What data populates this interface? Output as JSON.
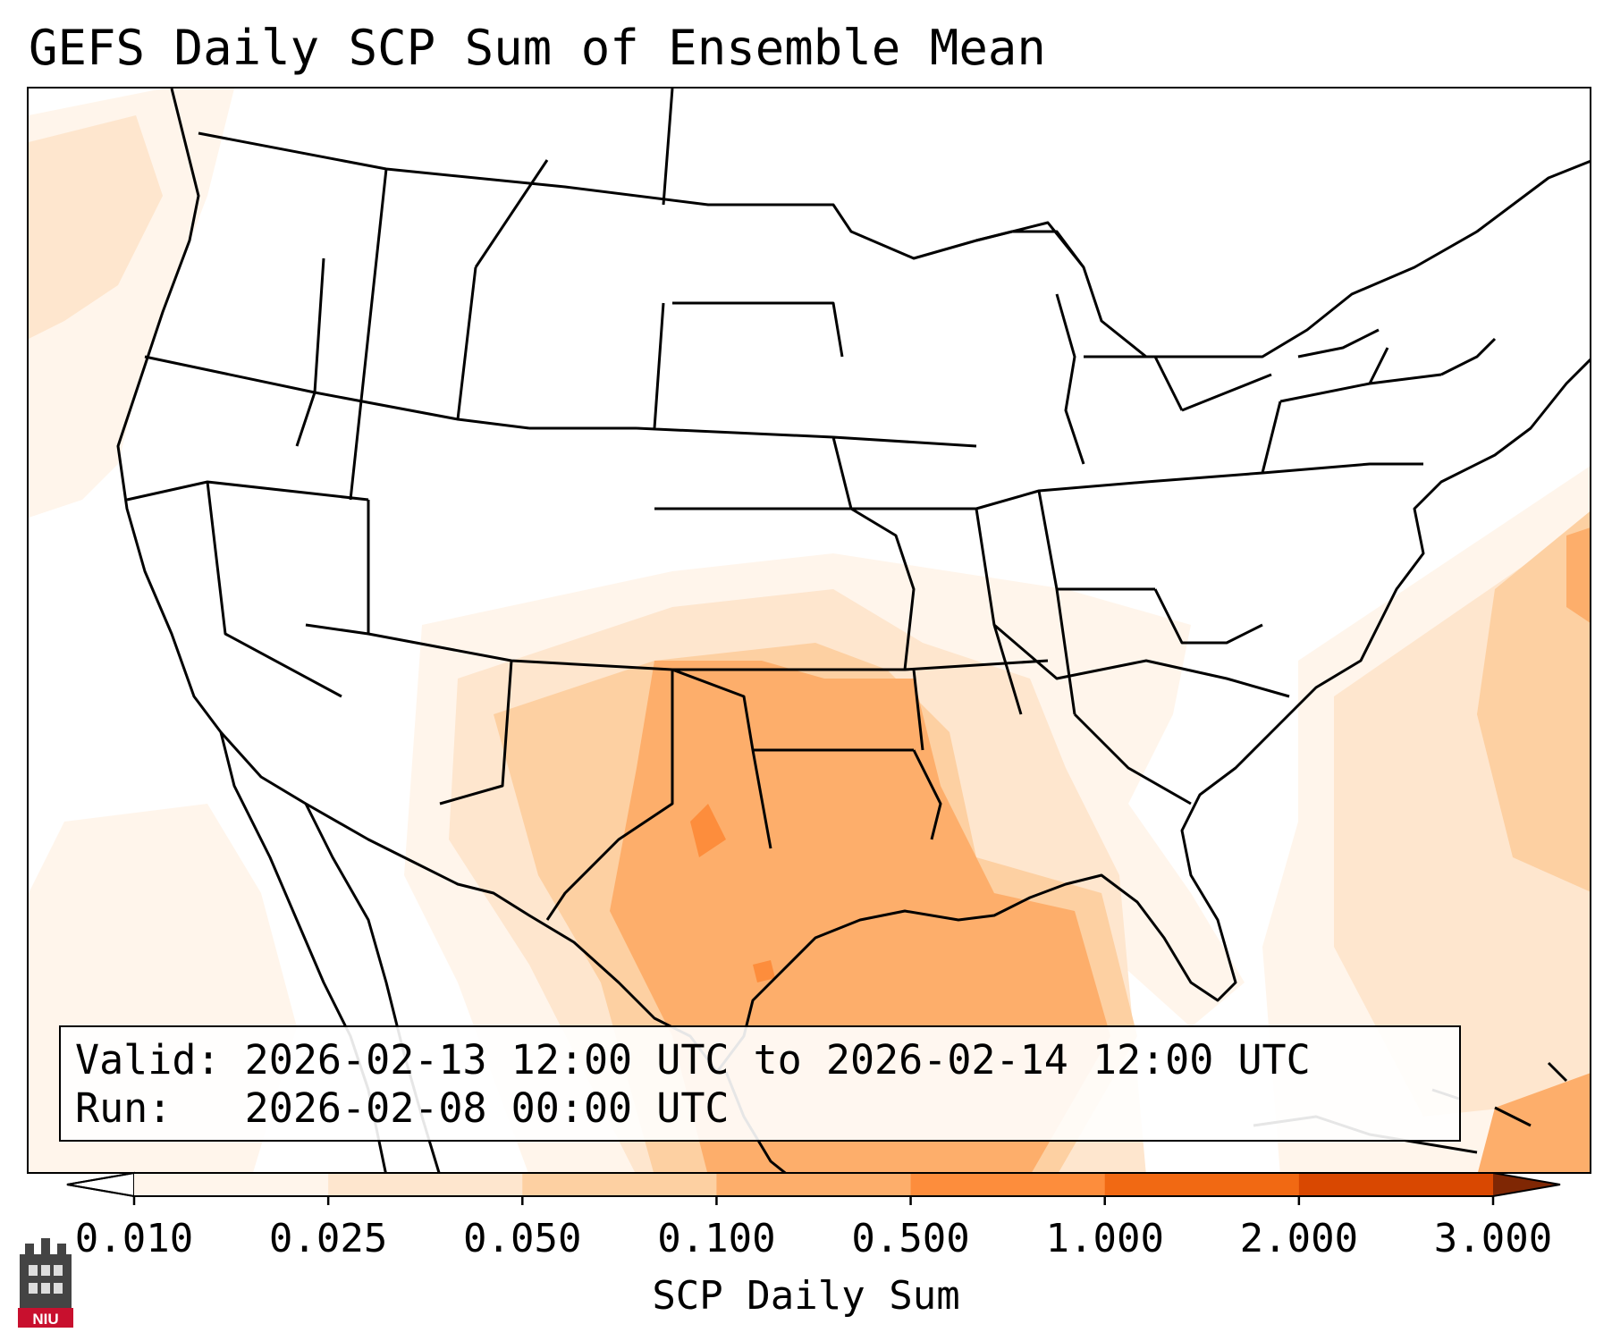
{
  "title": "GEFS Daily SCP Sum of Ensemble Mean",
  "map": {
    "projection": "conus-lambert",
    "field": "SCP daily sum",
    "shading_colors": [
      "#fff5eb",
      "#fee6ce",
      "#fdd0a2",
      "#fdae6b",
      "#fd8d3c",
      "#f16913",
      "#d94801",
      "#a63603"
    ],
    "regions": [
      {
        "area": "Texas / Oklahoma / Kansas",
        "level": "0.100-0.500"
      },
      {
        "area": "Gulf of Mexico",
        "level": "0.100-0.500"
      },
      {
        "area": "Central Texas spot",
        "level": "0.500-1.000"
      },
      {
        "area": "Lower Mississippi Valley",
        "level": "0.050-0.100"
      },
      {
        "area": "Western Atlantic",
        "level": "0.025-0.100"
      },
      {
        "area": "Pacific Northwest coast",
        "level": "0.010-0.050"
      }
    ]
  },
  "info": {
    "valid_label": "Valid:",
    "valid_value": "2026-02-13 12:00 UTC to 2026-02-14 12:00 UTC",
    "run_label": "Run:",
    "run_value": "2026-02-08 00:00 UTC"
  },
  "colorbar": {
    "ticks": [
      "0.010",
      "0.025",
      "0.050",
      "0.100",
      "0.500",
      "1.000",
      "2.000",
      "3.000"
    ],
    "colors": [
      "#fff5eb",
      "#fee6ce",
      "#fdd0a2",
      "#fdae6b",
      "#fd8d3c",
      "#f16913",
      "#d94801",
      "#a63603"
    ],
    "extend_low_color": "#ffffff",
    "extend_high_color": "#7f2704",
    "label": "SCP Daily Sum"
  },
  "logo": {
    "text": "NIU",
    "color": "#c8102e"
  }
}
